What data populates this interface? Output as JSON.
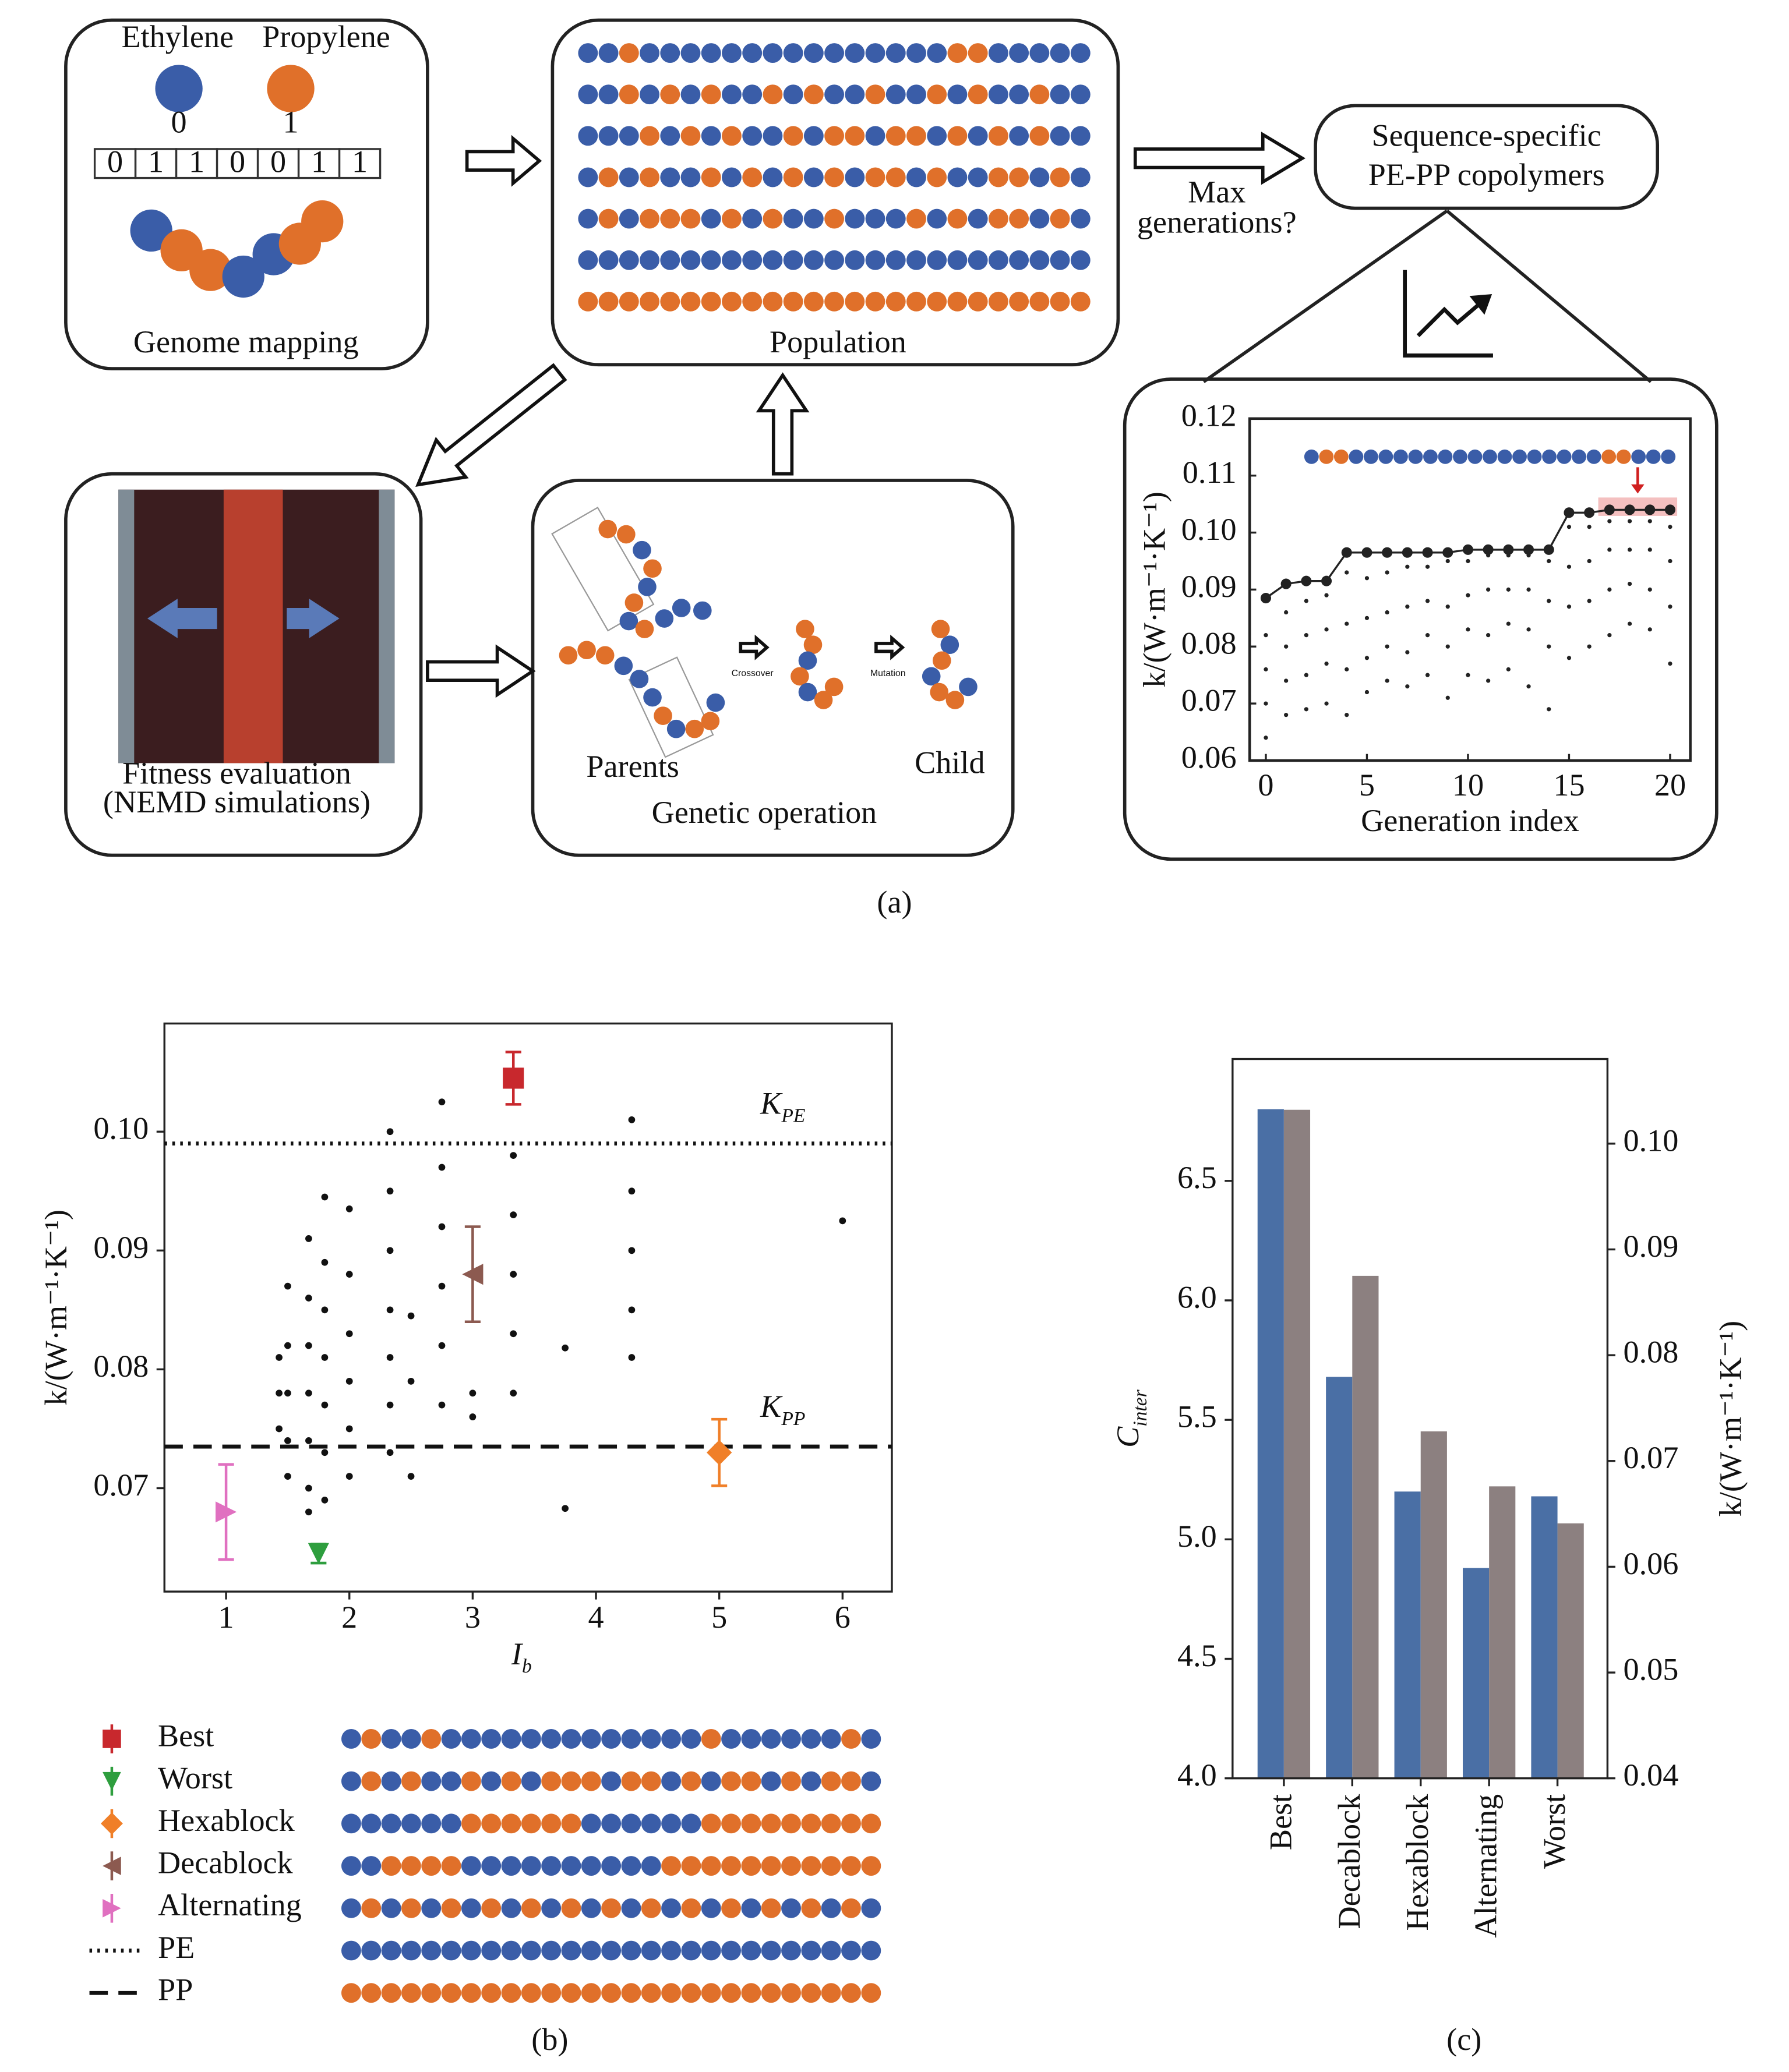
{
  "figure": {
    "panel_a": {
      "monomers": [
        "Ethylene",
        "Propylene"
      ],
      "monomer_codes": [
        "0",
        "1"
      ],
      "genome": [
        "0",
        "1",
        "1",
        "0",
        "0",
        "1",
        "1"
      ],
      "genome_caption": "Genome mapping",
      "population": [
        "0010000000000000001100000",
        "0010101001010010010100100",
        "0001010100101101101010100",
        "0101001010101011010011010",
        "0101110101001000101011010",
        "0000000000000000000000000",
        "1111111111111111111111111"
      ],
      "population_caption": "Population",
      "decision": [
        "Max",
        "generations?"
      ],
      "result": [
        "Sequence-specific",
        "PE-PP copolymers"
      ],
      "fitness_caption": [
        "Fitness evaluation",
        "(NEMD simulations)"
      ],
      "parents": "Parents",
      "child": "Child",
      "operation": "Genetic operation",
      "crossover": "Crossover",
      "mutation": "Mutation",
      "best_sequence": "0110000000000000000011000",
      "label": "(a)"
    },
    "panel_b": {
      "legend_sequences": [
        "010010000000000000100000010",
        "010100101011101101011010110",
        "000000111111000000111111111",
        "001111000000000011111111111",
        "010101010101010101010101010",
        "000000000000000000000000000",
        "111111111111111111111111111"
      ],
      "label": "(b)"
    },
    "panel_c": {
      "label": "(c)"
    }
  },
  "chart_data": [
    {
      "type": "scatter",
      "xlabel": "Generation index",
      "ylabel": "k/(W·m⁻¹·K⁻¹)",
      "xlim": [
        -0.8,
        21
      ],
      "ylim": [
        0.06,
        0.12
      ],
      "xticks": [
        0,
        5,
        10,
        15,
        20
      ],
      "yticks": [
        0.06,
        0.07,
        0.08,
        0.09,
        {
          "value": 0.1,
          "label": "0.10"
        },
        0.11,
        0.12
      ],
      "series": [
        {
          "kind": "line",
          "color": "#222222",
          "x": [
            0,
            1,
            2,
            3,
            4,
            5,
            6,
            7,
            8,
            9,
            10,
            11,
            12,
            13,
            14,
            15,
            16,
            17,
            18,
            19,
            20
          ],
          "values": [
            0.0885,
            0.091,
            0.0915,
            0.0915,
            0.0965,
            0.0965,
            0.0965,
            0.0965,
            0.0965,
            0.0965,
            0.097,
            0.097,
            0.097,
            0.097,
            0.097,
            0.1035,
            0.1035,
            0.104,
            0.104,
            0.104,
            0.104
          ]
        },
        {
          "kind": "scatter",
          "color": "#222222",
          "x": [
            0,
            0,
            0,
            0,
            1,
            1,
            1,
            1,
            2,
            2,
            2,
            2,
            3,
            3,
            3,
            3,
            4,
            4,
            4,
            4,
            5,
            5,
            5,
            5,
            6,
            6,
            6,
            6,
            7,
            7,
            7,
            7,
            8,
            8,
            8,
            8,
            9,
            9,
            9,
            9,
            10,
            10,
            10,
            10,
            11,
            11,
            11,
            11,
            12,
            12,
            12,
            12,
            13,
            13,
            13,
            13,
            14,
            14,
            14,
            14,
            15,
            15,
            15,
            15,
            16,
            16,
            16,
            16,
            17,
            17,
            17,
            17,
            18,
            18,
            18,
            18,
            19,
            19,
            19,
            19,
            20,
            20,
            20,
            20
          ],
          "values": [
            0.064,
            0.07,
            0.076,
            0.082,
            0.068,
            0.074,
            0.08,
            0.086,
            0.069,
            0.075,
            0.082,
            0.088,
            0.07,
            0.077,
            0.083,
            0.089,
            0.068,
            0.076,
            0.084,
            0.093,
            0.072,
            0.078,
            0.085,
            0.092,
            0.074,
            0.08,
            0.086,
            0.093,
            0.073,
            0.079,
            0.087,
            0.094,
            0.075,
            0.082,
            0.088,
            0.094,
            0.071,
            0.08,
            0.087,
            0.095,
            0.075,
            0.083,
            0.089,
            0.095,
            0.074,
            0.082,
            0.09,
            0.096,
            0.076,
            0.084,
            0.09,
            0.096,
            0.073,
            0.083,
            0.09,
            0.096,
            0.069,
            0.08,
            0.088,
            0.095,
            0.078,
            0.087,
            0.094,
            0.101,
            0.08,
            0.088,
            0.095,
            0.101,
            0.082,
            0.09,
            0.097,
            0.102,
            0.084,
            0.091,
            0.097,
            0.102,
            0.083,
            0.09,
            0.097,
            0.102,
            0.077,
            0.087,
            0.095,
            0.101
          ]
        }
      ]
    },
    {
      "type": "scatter",
      "xlabel": {
        "text": "I",
        "sub": "b"
      },
      "ylabel": "k/(W·m⁻¹·K⁻¹)",
      "xlim": [
        0.5,
        6.4
      ],
      "ylim": [
        0.0613,
        0.1091
      ],
      "xticks": [
        1,
        2,
        3,
        4,
        5,
        6
      ],
      "yticks": [
        0.07,
        0.08,
        0.09,
        {
          "value": 0.1,
          "label": "0.10"
        }
      ],
      "points": {
        "color": "#111111",
        "x": [
          1.43,
          1.43,
          1.43,
          1.5,
          1.5,
          1.5,
          1.5,
          1.5,
          1.67,
          1.67,
          1.67,
          1.67,
          1.67,
          1.67,
          1.67,
          1.8,
          1.8,
          1.8,
          1.8,
          1.8,
          1.8,
          1.8,
          2.0,
          2.0,
          2.0,
          2.0,
          2.0,
          2.0,
          2.33,
          2.33,
          2.33,
          2.33,
          2.33,
          2.33,
          2.33,
          2.5,
          2.5,
          2.5,
          2.75,
          2.75,
          2.75,
          2.75,
          2.75,
          2.75,
          3.0,
          3.0,
          3.33,
          3.33,
          3.33,
          3.33,
          3.33,
          3.75,
          3.75,
          4.29,
          4.29,
          4.29,
          4.29,
          4.29,
          6.0
        ],
        "values": [
          0.081,
          0.078,
          0.075,
          0.087,
          0.082,
          0.078,
          0.074,
          0.071,
          0.091,
          0.086,
          0.082,
          0.078,
          0.074,
          0.07,
          0.068,
          0.0945,
          0.089,
          0.085,
          0.081,
          0.077,
          0.073,
          0.069,
          0.0935,
          0.088,
          0.083,
          0.079,
          0.075,
          0.071,
          0.1,
          0.095,
          0.09,
          0.085,
          0.081,
          0.077,
          0.073,
          0.0845,
          0.079,
          0.071,
          0.1025,
          0.097,
          0.092,
          0.087,
          0.082,
          0.077,
          0.078,
          0.076,
          0.098,
          0.093,
          0.088,
          0.083,
          0.078,
          0.0818,
          0.0683,
          0.101,
          0.095,
          0.09,
          0.085,
          0.081,
          0.0925
        ]
      },
      "series": [
        {
          "name": "Best",
          "color": "#c8282d",
          "marker": "square",
          "x": [
            3.33
          ],
          "values": [
            0.1045
          ],
          "errors": [
            0.0022
          ]
        },
        {
          "name": "Worst",
          "color": "#2e9e3e",
          "marker": "triangle-down",
          "x": [
            1.75
          ],
          "values": [
            0.0645
          ],
          "errors": [
            0.0008
          ]
        },
        {
          "name": "Hexablock",
          "color": "#f07f28",
          "marker": "diamond",
          "x": [
            5
          ],
          "values": [
            0.073
          ],
          "errors": [
            0.0028
          ]
        },
        {
          "name": "Decablock",
          "color": "#8c5a50",
          "marker": "triangle-left",
          "x": [
            3
          ],
          "values": [
            0.088
          ],
          "errors": [
            0.004
          ]
        },
        {
          "name": "Alternating",
          "color": "#e070c0",
          "marker": "triangle-right",
          "x": [
            1
          ],
          "values": [
            0.068
          ],
          "errors": [
            0.004
          ]
        }
      ],
      "reference_lines": [
        {
          "name": "PE",
          "value": 0.099,
          "style": "dotted",
          "label": {
            "text": "K",
            "sub": "PE"
          }
        },
        {
          "name": "PP",
          "value": 0.0735,
          "style": "dashed",
          "label": {
            "text": "K",
            "sub": "PP"
          }
        }
      ]
    },
    {
      "type": "bar",
      "categories": [
        "Best",
        "Decablock",
        "Hexablock",
        "Alternating",
        "Worst"
      ],
      "ylabel": {
        "text": "C",
        "sub": "inter"
      },
      "y2label": "k/(W·m⁻¹·K⁻¹)",
      "ylim": [
        4,
        7.01
      ],
      "yticks": [
        {
          "value": 4,
          "label": "4.0"
        },
        4.5,
        {
          "value": 5,
          "label": "5.0"
        },
        5.5,
        {
          "value": 6,
          "label": "6.0"
        },
        6.5
      ],
      "y2lim": [
        0.04,
        0.108
      ],
      "y2ticks": [
        0.04,
        0.05,
        0.06,
        0.07,
        0.08,
        0.09,
        {
          "value": 0.1,
          "label": "0.10"
        }
      ],
      "series": [
        {
          "color": "#4a6fa5",
          "values": [
            6.8,
            5.68,
            5.2,
            4.88,
            5.18
          ]
        },
        {
          "color": "#8c8080",
          "axis": "y2",
          "values": [
            0.1032,
            0.0875,
            0.0728,
            0.0676,
            0.0641
          ]
        }
      ]
    }
  ]
}
